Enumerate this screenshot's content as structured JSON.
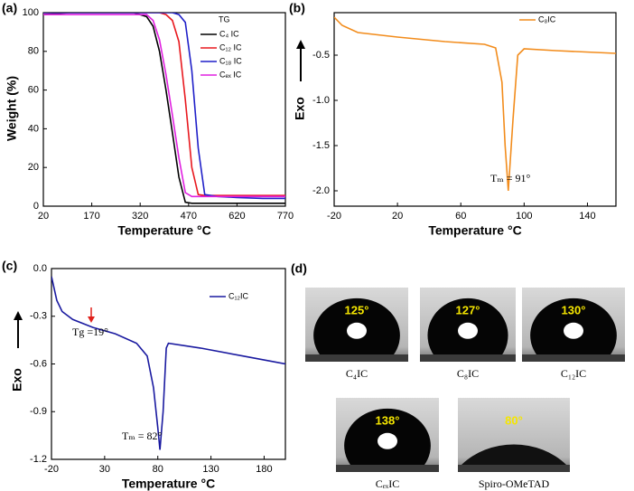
{
  "chart_data": [
    {
      "type": "line",
      "panel_label": "(a)",
      "xlabel": "Temperature °C",
      "ylabel": "Weight (%)",
      "legend_title": "TG",
      "x": [
        20,
        100,
        200,
        300,
        340,
        360,
        380,
        400,
        420,
        440,
        460,
        480,
        500,
        520,
        560,
        620,
        700,
        770
      ],
      "xlim": [
        20,
        770
      ],
      "xticks": [
        20,
        170,
        320,
        470,
        620,
        770
      ],
      "ylim": [
        0,
        100
      ],
      "yticks": [
        0,
        20,
        40,
        60,
        80,
        100
      ],
      "series": [
        {
          "name": "C₄ IC",
          "color": "#000000",
          "values": [
            99,
            100,
            100,
            100,
            98,
            93,
            80,
            60,
            38,
            15,
            2,
            1.5,
            1.5,
            1.5,
            1.5,
            1.5,
            1.5,
            1.5
          ]
        },
        {
          "name": "C₁₂ IC",
          "color": "#e8191f",
          "values": [
            100,
            100,
            100,
            100,
            100,
            100,
            100,
            99,
            96,
            85,
            55,
            20,
            6,
            5.5,
            5.5,
            5.5,
            5.5,
            5.5
          ]
        },
        {
          "name": "C₁₈ IC",
          "color": "#1f1fc8",
          "values": [
            100,
            100,
            100,
            100,
            100,
            100,
            100,
            100,
            100,
            99,
            95,
            70,
            30,
            6,
            5,
            4.5,
            4,
            4
          ]
        },
        {
          "name": "Cₑₓ IC",
          "color": "#e020e0",
          "values": [
            99,
            99,
            99,
            99,
            99,
            96,
            86,
            68,
            47,
            25,
            7,
            5,
            5,
            5,
            5,
            5,
            5,
            5
          ]
        }
      ]
    },
    {
      "type": "line",
      "panel_label": "(b)",
      "xlabel": "Temperature °C",
      "ylabel": "Exo",
      "x": [
        -20,
        -15,
        -5,
        20,
        50,
        75,
        82,
        86,
        88,
        90,
        93,
        96,
        100,
        120,
        158
      ],
      "xlim": [
        -20,
        158
      ],
      "xticks": [
        -20,
        20,
        60,
        100,
        140
      ],
      "ylim": [
        -2.17,
        -0.03
      ],
      "yticks": [
        -0.5,
        {
          "value": -1,
          "label": "-1.0"
        },
        -1.5,
        {
          "value": -2,
          "label": "-2.0"
        }
      ],
      "series": [
        {
          "name": "C₈IC",
          "color": "#f28c1c",
          "values": [
            -0.08,
            -0.17,
            -0.25,
            -0.3,
            -0.35,
            -0.38,
            -0.42,
            -0.8,
            -1.5,
            -2.0,
            -1.2,
            -0.5,
            -0.43,
            -0.45,
            -0.48
          ]
        }
      ],
      "annotations": [
        "Tₘ = 91°"
      ]
    },
    {
      "type": "line",
      "panel_label": "(c)",
      "xlabel": "Temperature °C",
      "ylabel": "Exo",
      "x": [
        -20,
        -15,
        -10,
        0,
        19,
        40,
        60,
        70,
        76,
        80,
        82,
        85,
        88,
        90,
        120,
        160,
        200
      ],
      "xlim": [
        -20,
        200
      ],
      "xticks": [
        -20,
        30,
        80,
        130,
        180
      ],
      "ylim": [
        -1.2,
        0
      ],
      "yticks": [
        {
          "value": 0,
          "label": "0.0"
        },
        -0.3,
        -0.6,
        -0.9,
        -1.2
      ],
      "series": [
        {
          "name": "C₁₂IC",
          "color": "#1a1aa0",
          "values": [
            -0.05,
            -0.2,
            -0.27,
            -0.32,
            -0.37,
            -0.41,
            -0.47,
            -0.55,
            -0.75,
            -1.0,
            -1.14,
            -0.9,
            -0.5,
            -0.47,
            -0.5,
            -0.55,
            -0.6
          ]
        }
      ],
      "annotations": [
        "Tg =19°",
        "Tₘ = 82°"
      ]
    }
  ],
  "photos": {
    "panel_label": "(d)",
    "items": [
      {
        "angle": "125°",
        "label": "C₄IC"
      },
      {
        "angle": "127°",
        "label": "C₈IC"
      },
      {
        "angle": "130°",
        "label": "C₁₂IC"
      },
      {
        "angle": "138°",
        "label": "CₑₓIC"
      },
      {
        "angle": "80°",
        "label": "Spiro-OMeTAD"
      }
    ]
  }
}
